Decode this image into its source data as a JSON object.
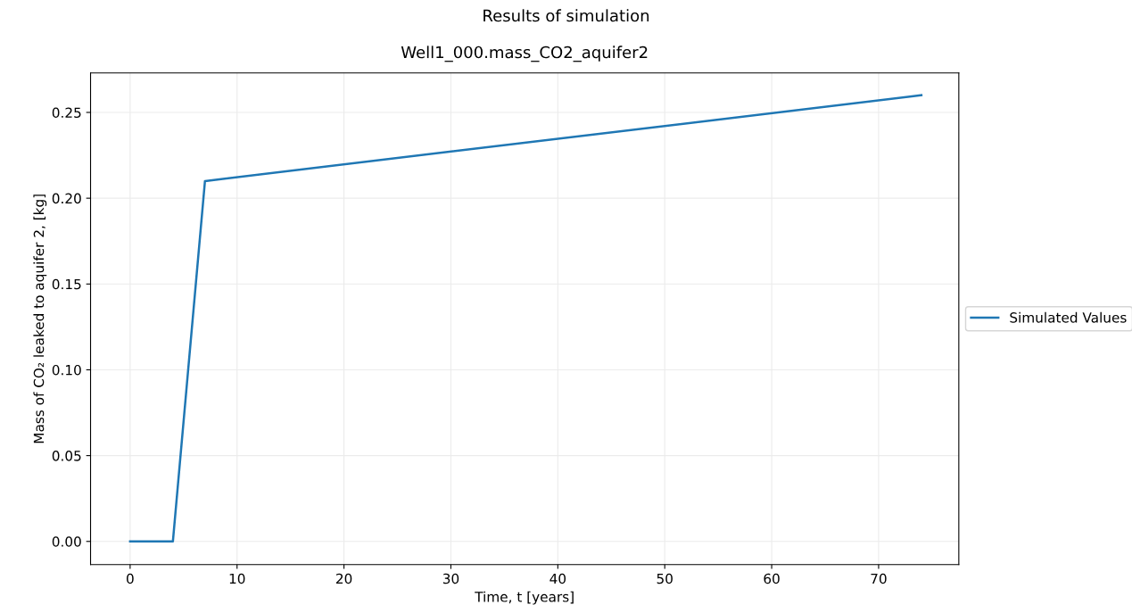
{
  "chart_data": {
    "type": "line",
    "title": "Results of simulation",
    "subtitle": "Well1_000.mass_CO2_aquifer2",
    "xlabel": "Time, t [years]",
    "ylabel": "Mass of CO₂ leaked to aquifer 2, [kg]",
    "series": [
      {
        "name": "Simulated Values",
        "color": "#1f77b4",
        "x": [
          0,
          4,
          7,
          74
        ],
        "values": [
          0,
          0,
          0.21,
          0.26
        ]
      }
    ],
    "xlim": [
      -3.7,
      77.5
    ],
    "ylim": [
      -0.0135,
      0.273
    ],
    "xticks": [
      0,
      10,
      20,
      30,
      40,
      50,
      60,
      70
    ],
    "yticks": [
      {
        "value": 0,
        "label": "0.00"
      },
      {
        "value": 0.05,
        "label": "0.05"
      },
      {
        "value": 0.1,
        "label": "0.10"
      },
      {
        "value": 0.15,
        "label": "0.15"
      },
      {
        "value": 0.2,
        "label": "0.20"
      },
      {
        "value": 0.25,
        "label": "0.25"
      }
    ],
    "grid": true,
    "legend": "right",
    "marker": "none",
    "line_style": "solid"
  }
}
